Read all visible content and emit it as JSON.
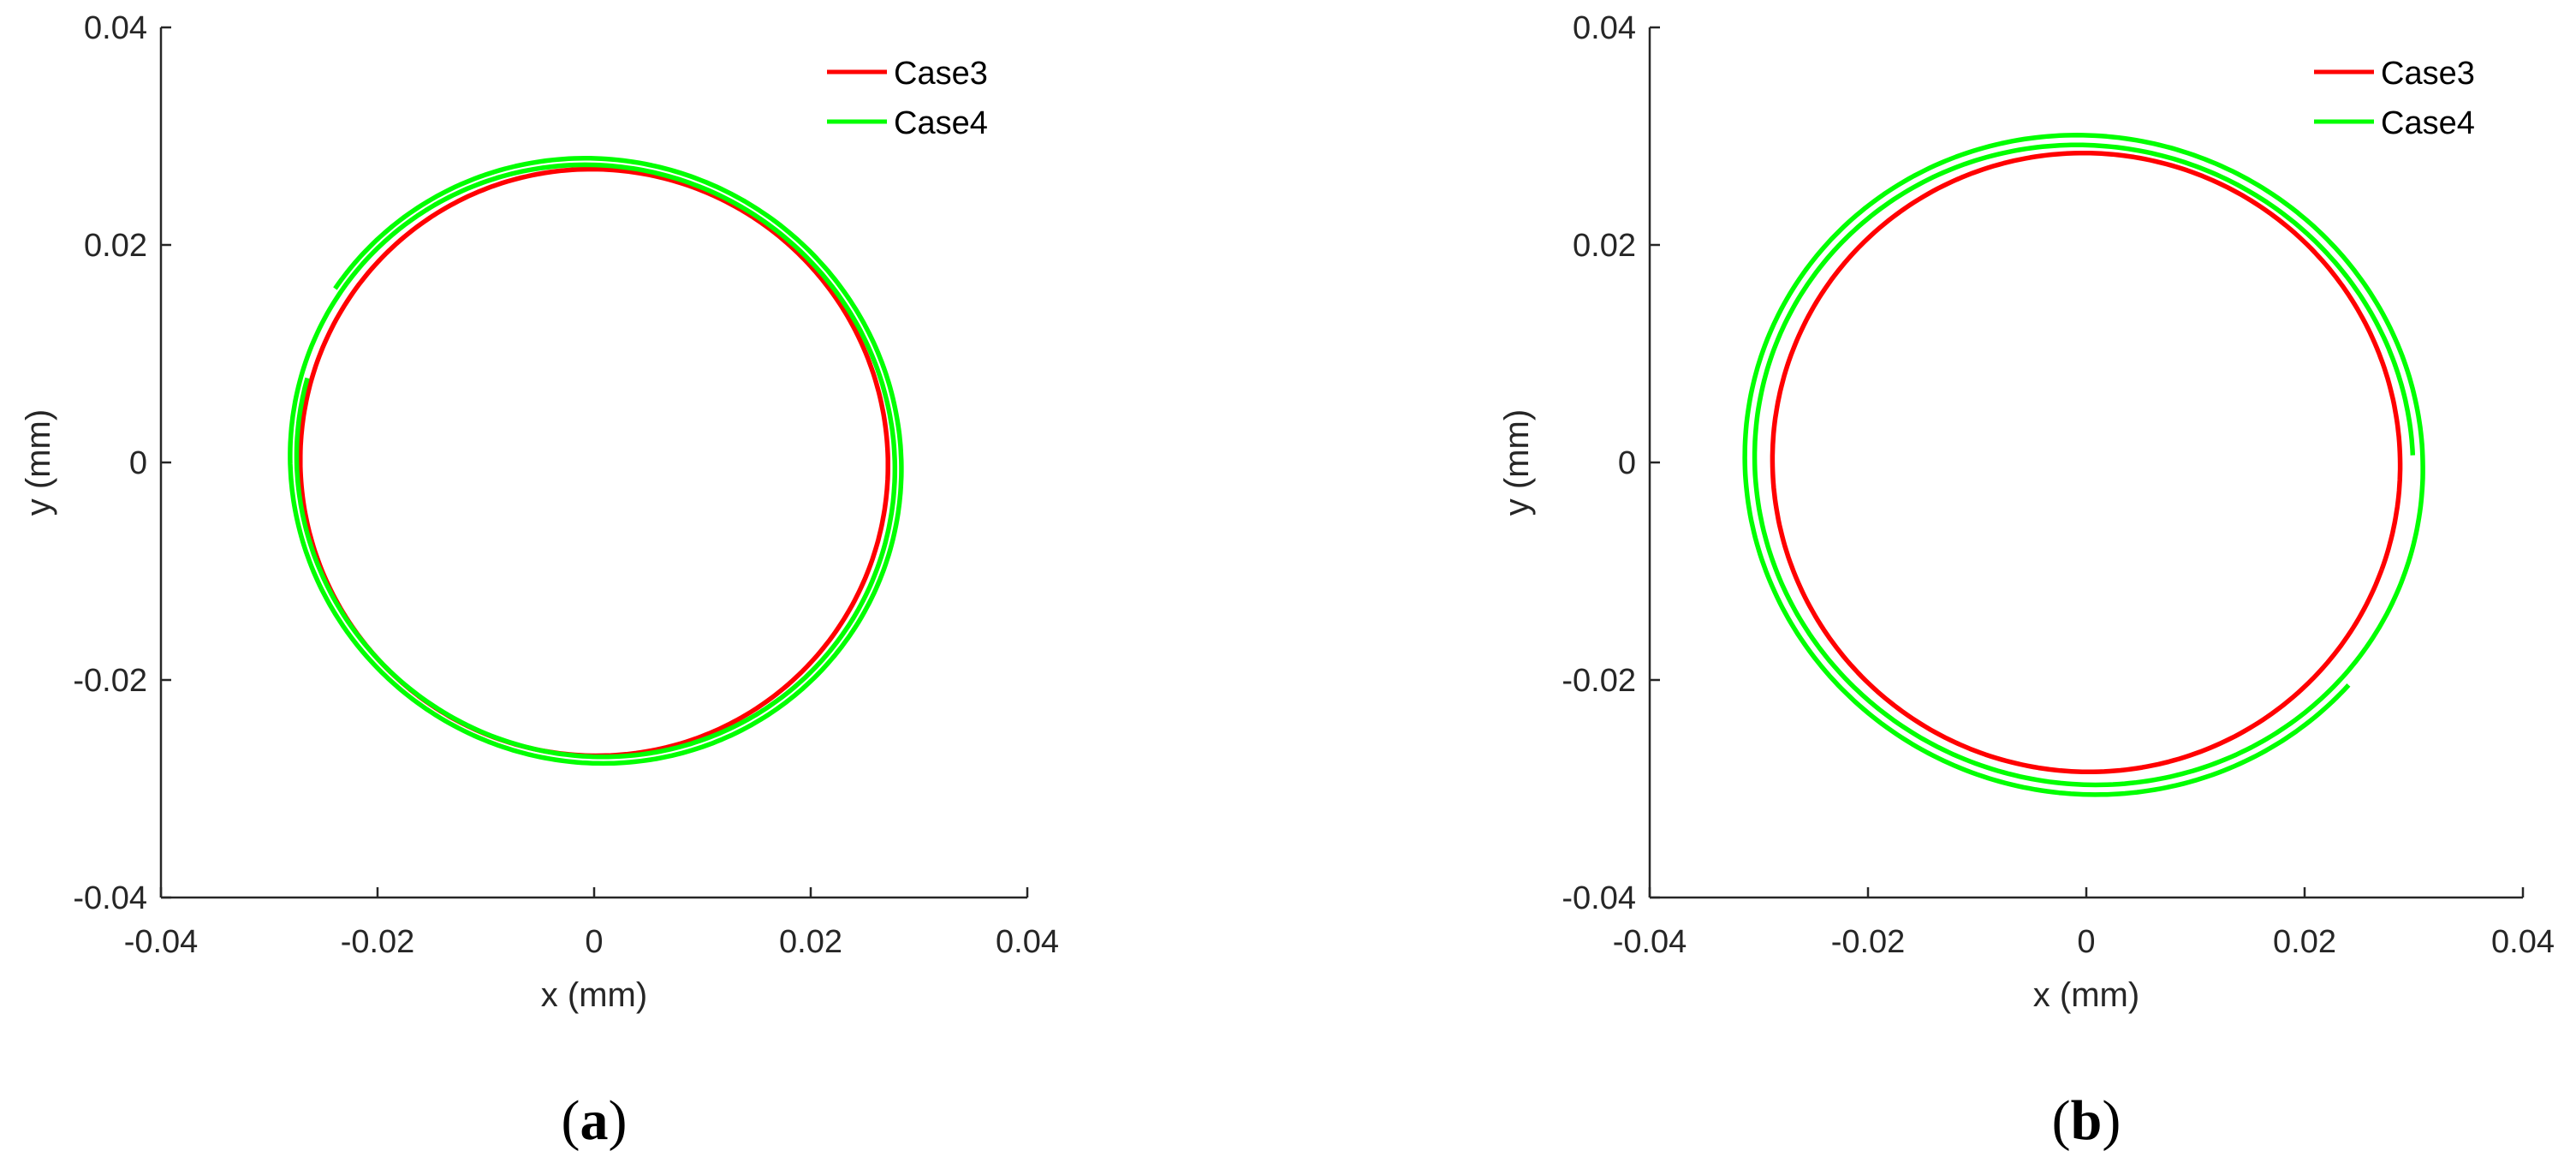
{
  "chart_data": [
    {
      "type": "line",
      "panel_label": "a",
      "xlabel": "x (mm)",
      "ylabel": "y (mm)",
      "xlim": [
        -0.04,
        0.04
      ],
      "ylim": [
        -0.04,
        0.04
      ],
      "xticks": [
        "-0.04",
        "-0.02",
        "0",
        "0.02",
        "0.04"
      ],
      "yticks": [
        "-0.04",
        "-0.02",
        "0",
        "0.02",
        "0.04"
      ],
      "grid": false,
      "legend": "top-right",
      "series": [
        {
          "name": "Case3",
          "color": "#ff0000",
          "shape": "ellipse",
          "center": [
            0.0,
            0.0
          ],
          "rx": 0.0272,
          "ry": 0.0269,
          "rotation_deg": -28,
          "turns": 1.0
        },
        {
          "name": "Case4",
          "color": "#00ff00",
          "shape": "spiral",
          "center": [
            0.0,
            0.0
          ],
          "rx": 0.0282,
          "ry": 0.0273,
          "rotation_deg": -26,
          "start_deg": 190,
          "turns": 1.95,
          "radius_change_per_turn": 0.0006
        }
      ]
    },
    {
      "type": "line",
      "panel_label": "b",
      "xlabel": "x (mm)",
      "ylabel": "y (mm)",
      "xlim": [
        -0.04,
        0.04
      ],
      "ylim": [
        -0.04,
        0.04
      ],
      "xticks": [
        "-0.04",
        "-0.02",
        "0",
        "0.02",
        "0.04"
      ],
      "yticks": [
        "-0.04",
        "-0.02",
        "0",
        "0.02",
        "0.04"
      ],
      "grid": false,
      "legend": "top-right",
      "series": [
        {
          "name": "Case3",
          "color": "#ff0000",
          "shape": "ellipse",
          "center": [
            0.0,
            0.0
          ],
          "rx": 0.0288,
          "ry": 0.0284,
          "rotation_deg": -20,
          "turns": 1.0
        },
        {
          "name": "Case4",
          "color": "#00ff00",
          "shape": "spiral",
          "center": [
            0.0,
            0.0
          ],
          "rx": 0.0309,
          "ry": 0.0297,
          "rotation_deg": -18,
          "start_deg": 20,
          "turns": 1.88,
          "radius_change_per_turn": 0.0009
        }
      ]
    }
  ]
}
